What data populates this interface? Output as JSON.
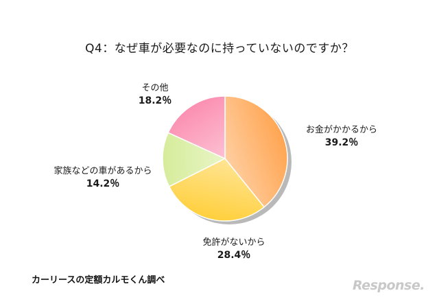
{
  "chart_data": {
    "type": "pie",
    "title": "Q4：なぜ車が必要なのに持っていないのですか？",
    "slices": [
      {
        "label": "お金がかかるから",
        "value": 39.2,
        "value_label": "39.2％",
        "color": "#ffa552"
      },
      {
        "label": "免許がないから",
        "value": 28.4,
        "value_label": "28.4％",
        "color": "#ffcf3c"
      },
      {
        "label": "家族などの車があるから",
        "value": 14.2,
        "value_label": "14.2％",
        "color": "#d6ec9a"
      },
      {
        "label": "その他",
        "value": 18.2,
        "value_label": "18.2％",
        "color": "#fb8fb1"
      }
    ],
    "start": "12 o'clock",
    "direction": "clockwise"
  },
  "source": "カーリースの定額カルモくん調べ",
  "watermark": "Response."
}
